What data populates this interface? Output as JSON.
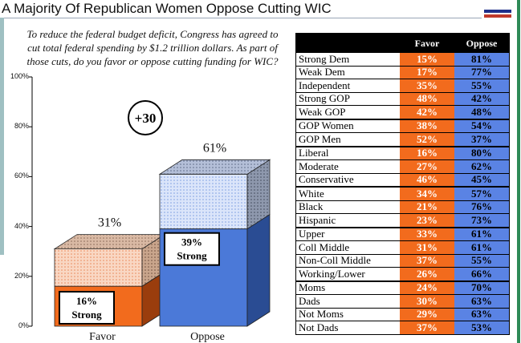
{
  "slide": {
    "title": "A Majority Of Republican Women Oppose Cutting WIC",
    "question": "To reduce the federal budget deficit, Congress has agreed to cut total federal spending by $1.2 trillion dollars. As part of those cuts, do you favor or oppose cutting funding for WIC?",
    "net_badge": "+30"
  },
  "chart_data": [
    {
      "type": "bar",
      "categories": [
        "Favor",
        "Oppose"
      ],
      "series": [
        {
          "name": "Strong",
          "values": [
            16,
            39
          ]
        },
        {
          "name": "Total",
          "values": [
            31,
            61
          ]
        }
      ],
      "total_labels": [
        "31%",
        "61%"
      ],
      "strong_labels": [
        "16%\nStrong",
        "39%\nStrong"
      ],
      "strong_pct": [
        "16%",
        "39%"
      ],
      "strong_word": "Strong",
      "yticks": [
        "0%",
        "20%",
        "40%",
        "60%",
        "80%",
        "100%"
      ],
      "ylim": [
        0,
        100
      ],
      "colors": {
        "favor_solid": "#f26b1d",
        "favor_soft": "#f4b896",
        "oppose_solid": "#4b79d8",
        "oppose_soft": "#c3d3f3"
      },
      "title": "",
      "xlabel": "",
      "ylabel": ""
    },
    {
      "type": "table",
      "columns": [
        "Favor",
        "Oppose"
      ],
      "rows": [
        {
          "label": "Strong Dem",
          "favor": "15%",
          "oppose": "81%",
          "group_start": true
        },
        {
          "label": "Weak Dem",
          "favor": "17%",
          "oppose": "77%"
        },
        {
          "label": "Independent",
          "favor": "35%",
          "oppose": "55%"
        },
        {
          "label": "Strong GOP",
          "favor": "48%",
          "oppose": "42%"
        },
        {
          "label": "Weak GOP",
          "favor": "42%",
          "oppose": "48%"
        },
        {
          "label": "GOP Women",
          "favor": "38%",
          "oppose": "54%",
          "group_start": true
        },
        {
          "label": "GOP Men",
          "favor": "52%",
          "oppose": "37%"
        },
        {
          "label": "Liberal",
          "favor": "16%",
          "oppose": "80%",
          "group_start": true
        },
        {
          "label": "Moderate",
          "favor": "27%",
          "oppose": "62%"
        },
        {
          "label": "Conservative",
          "favor": "46%",
          "oppose": "45%"
        },
        {
          "label": "White",
          "favor": "34%",
          "oppose": "57%",
          "group_start": true
        },
        {
          "label": "Black",
          "favor": "21%",
          "oppose": "76%"
        },
        {
          "label": "Hispanic",
          "favor": "23%",
          "oppose": "73%"
        },
        {
          "label": "Upper",
          "favor": "33%",
          "oppose": "61%",
          "group_start": true
        },
        {
          "label": "Coll Middle",
          "favor": "31%",
          "oppose": "61%"
        },
        {
          "label": "Non-Coll Middle",
          "favor": "37%",
          "oppose": "55%"
        },
        {
          "label": "Working/Lower",
          "favor": "26%",
          "oppose": "66%"
        },
        {
          "label": "Moms",
          "favor": "24%",
          "oppose": "70%",
          "group_start": true
        },
        {
          "label": "Dads",
          "favor": "30%",
          "oppose": "63%"
        },
        {
          "label": "Not Moms",
          "favor": "29%",
          "oppose": "63%"
        },
        {
          "label": "Not Dads",
          "favor": "37%",
          "oppose": "53%"
        }
      ]
    }
  ]
}
